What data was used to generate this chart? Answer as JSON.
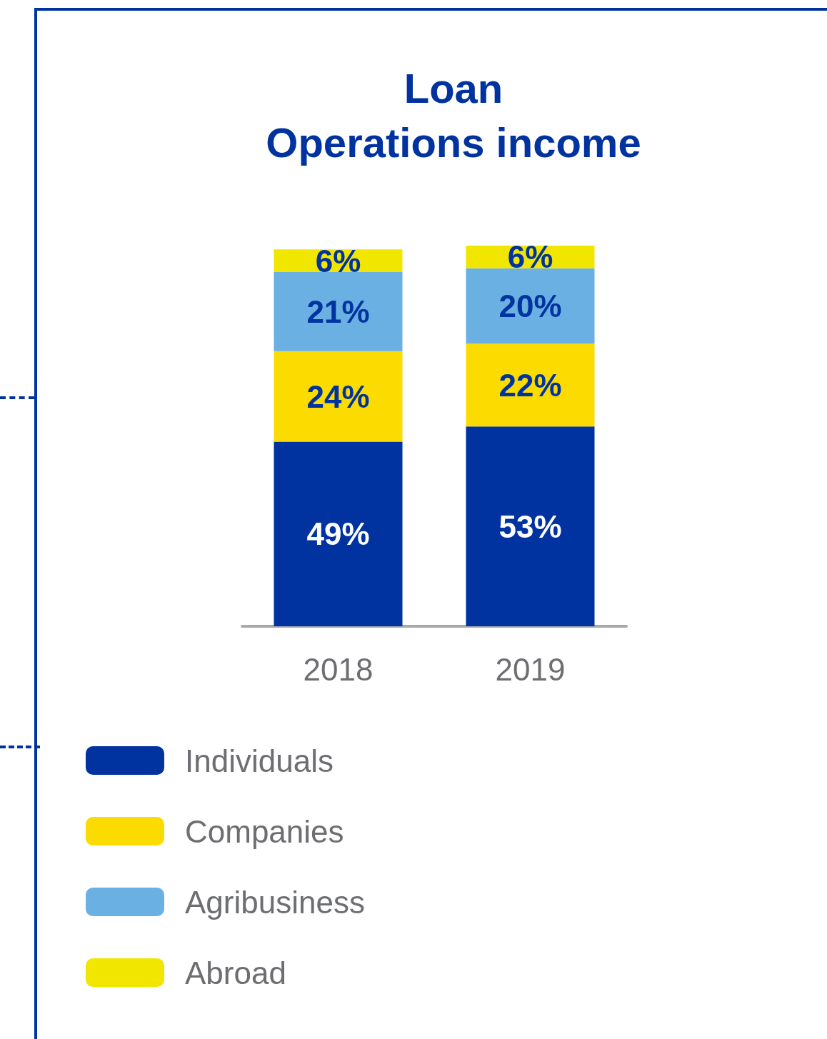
{
  "chart_data": {
    "type": "bar",
    "title": "Loan\nOperations income",
    "categories": [
      "2018",
      "2019"
    ],
    "stacked": true,
    "legend": "bottom",
    "grid": false,
    "series": [
      {
        "name": "Individuals",
        "color": "#0033a0",
        "values": [
          49,
          53
        ],
        "value_labels": [
          "49%",
          "53%"
        ]
      },
      {
        "name": "Companies",
        "color": "#fcdc00",
        "values": [
          24,
          22
        ],
        "value_labels": [
          "24%",
          "22%"
        ]
      },
      {
        "name": "Agribusiness",
        "color": "#6ab0e2",
        "values": [
          21,
          20
        ],
        "value_labels": [
          "21%",
          "20%"
        ]
      },
      {
        "name": "Abroad",
        "color": "#f0e600",
        "values": [
          6,
          6
        ],
        "value_labels": [
          "6%",
          "6%"
        ]
      }
    ]
  }
}
